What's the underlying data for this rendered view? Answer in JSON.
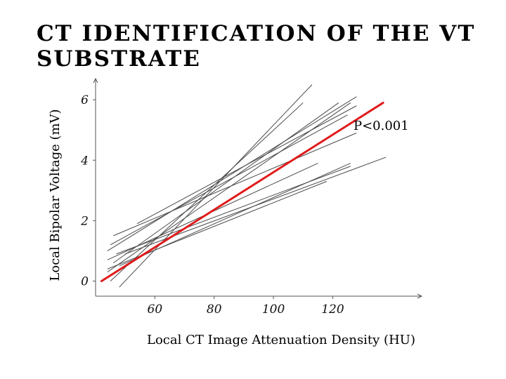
{
  "slide": {
    "title": "CT IDENTIFICATION OF THE VT SUBSTRATE"
  },
  "chart_data": {
    "type": "line",
    "xlabel": "Local CT Image Attenuation Density (HU)",
    "ylabel": "Local Bipolar Voltage (mV)",
    "xlim": [
      40,
      150
    ],
    "ylim": [
      -0.5,
      6.7
    ],
    "x_ticks": [
      60,
      80,
      100,
      120
    ],
    "y_ticks": [
      0,
      2,
      4,
      6
    ],
    "grid": false,
    "annotations": [
      {
        "text": "P<0.001",
        "x": 127,
        "y": 5
      }
    ],
    "colors": {
      "regression": "#e01b1b",
      "individual": "#4a4a4a",
      "axis": "#555555"
    },
    "regression": {
      "x": [
        42,
        137
      ],
      "y": [
        0.0,
        5.9
      ]
    },
    "individual_lines": [
      {
        "x": [
          48,
          113
        ],
        "y": [
          -0.2,
          6.5
        ]
      },
      {
        "x": [
          45,
          110
        ],
        "y": [
          0.0,
          5.9
        ]
      },
      {
        "x": [
          44,
          126
        ],
        "y": [
          0.3,
          5.9
        ]
      },
      {
        "x": [
          46,
          122
        ],
        "y": [
          0.6,
          5.9
        ]
      },
      {
        "x": [
          44,
          128
        ],
        "y": [
          1.0,
          6.1
        ]
      },
      {
        "x": [
          45,
          125
        ],
        "y": [
          1.2,
          5.5
        ]
      },
      {
        "x": [
          54,
          128
        ],
        "y": [
          1.9,
          5.8
        ]
      },
      {
        "x": [
          46,
          128
        ],
        "y": [
          1.5,
          4.9
        ]
      },
      {
        "x": [
          44,
          115
        ],
        "y": [
          0.7,
          3.9
        ]
      },
      {
        "x": [
          48,
          126
        ],
        "y": [
          0.5,
          3.9
        ]
      },
      {
        "x": [
          50,
          138
        ],
        "y": [
          0.9,
          4.1
        ]
      },
      {
        "x": [
          47,
          126
        ],
        "y": [
          0.9,
          3.8
        ]
      },
      {
        "x": [
          44,
          118
        ],
        "y": [
          0.4,
          3.3
        ]
      }
    ]
  }
}
